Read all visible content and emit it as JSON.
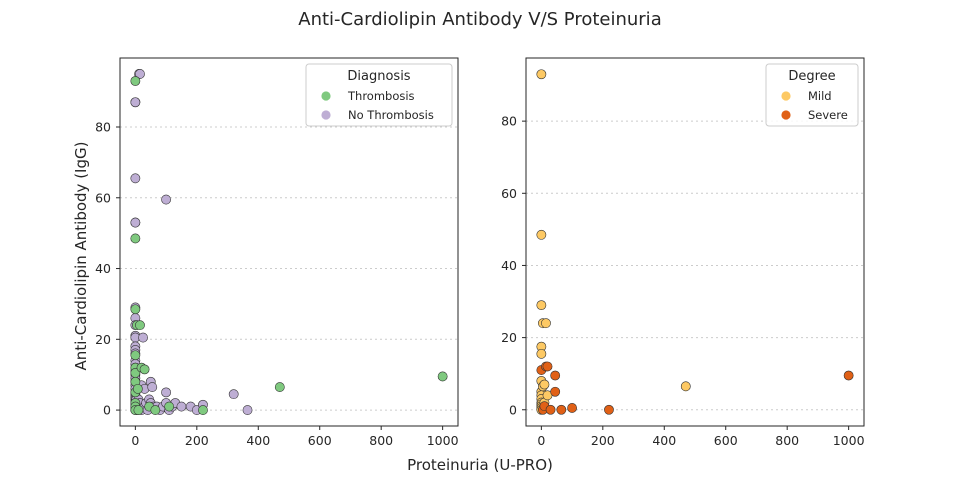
{
  "figure": {
    "title": "Anti-Cardiolipin Antibody V/S Proteinuria",
    "xlabel": "Proteinuria (U-PRO)",
    "ylabel": "Anti-Cardiolipin Antibody (IgG)"
  },
  "chart_data": [
    {
      "type": "scatter",
      "xlim": [
        -50,
        1050
      ],
      "ylim": [
        -4.5,
        99.5
      ],
      "xticks": [
        0,
        200,
        400,
        600,
        800,
        1000
      ],
      "yticks": [
        0,
        20,
        40,
        60,
        80
      ],
      "grid": "horizontal dotted",
      "legend": {
        "title": "Diagnosis",
        "placement": "top-right",
        "entries": [
          {
            "name": "Thrombosis",
            "color": "#7fc97f"
          },
          {
            "name": "No Thrombosis",
            "color": "#beaed4"
          }
        ]
      },
      "series": [
        {
          "name": "No Thrombosis",
          "color": "#beaed4",
          "points": [
            [
              0,
              87
            ],
            [
              0,
              87
            ],
            [
              0,
              65.5
            ],
            [
              0,
              53
            ],
            [
              0,
              53
            ],
            [
              0,
              29
            ],
            [
              0,
              26
            ],
            [
              0,
              24
            ],
            [
              0,
              21
            ],
            [
              0,
              20.5
            ],
            [
              0,
              18
            ],
            [
              0,
              17
            ],
            [
              0,
              16
            ],
            [
              0,
              14
            ],
            [
              0,
              13
            ],
            [
              0,
              12
            ],
            [
              0,
              11
            ],
            [
              0,
              10
            ],
            [
              0,
              9
            ],
            [
              0,
              8
            ],
            [
              0,
              7
            ],
            [
              0,
              6
            ],
            [
              0,
              5
            ],
            [
              0,
              4.5
            ],
            [
              0,
              4
            ],
            [
              0,
              3.5
            ],
            [
              0,
              3
            ],
            [
              0,
              2.5
            ],
            [
              0,
              2
            ],
            [
              0,
              1.5
            ],
            [
              0,
              1
            ],
            [
              0,
              0.5
            ],
            [
              0,
              0
            ],
            [
              2,
              1
            ],
            [
              3,
              3
            ],
            [
              5,
              0
            ],
            [
              5,
              2
            ],
            [
              8,
              1
            ],
            [
              10,
              0
            ],
            [
              10,
              3
            ],
            [
              12,
              95
            ],
            [
              15,
              95
            ],
            [
              15,
              2
            ],
            [
              20,
              7
            ],
            [
              20,
              0
            ],
            [
              25,
              20.5
            ],
            [
              30,
              6
            ],
            [
              30,
              1
            ],
            [
              35,
              2
            ],
            [
              40,
              0
            ],
            [
              45,
              3
            ],
            [
              50,
              8
            ],
            [
              50,
              2
            ],
            [
              55,
              6.5
            ],
            [
              60,
              1
            ],
            [
              70,
              1
            ],
            [
              80,
              0
            ],
            [
              90,
              1
            ],
            [
              100,
              59.5
            ],
            [
              100,
              5
            ],
            [
              100,
              2
            ],
            [
              110,
              0
            ],
            [
              120,
              1
            ],
            [
              130,
              2
            ],
            [
              150,
              1
            ],
            [
              180,
              1
            ],
            [
              200,
              0
            ],
            [
              220,
              1.5
            ],
            [
              320,
              4.5
            ],
            [
              365,
              0
            ]
          ]
        },
        {
          "name": "Thrombosis",
          "color": "#7fc97f",
          "points": [
            [
              0,
              93
            ],
            [
              0,
              48.5
            ],
            [
              0,
              28.5
            ],
            [
              0,
              15.5
            ],
            [
              0,
              12
            ],
            [
              0,
              10.5
            ],
            [
              0,
              8
            ],
            [
              0,
              5
            ],
            [
              0,
              2
            ],
            [
              0,
              1
            ],
            [
              0,
              0
            ],
            [
              5,
              24
            ],
            [
              8,
              6
            ],
            [
              10,
              0
            ],
            [
              15,
              24
            ],
            [
              20,
              12
            ],
            [
              30,
              11.5
            ],
            [
              45,
              1
            ],
            [
              65,
              0
            ],
            [
              110,
              1
            ],
            [
              220,
              0
            ],
            [
              470,
              6.5
            ],
            [
              1000,
              9.5
            ]
          ]
        }
      ]
    },
    {
      "type": "scatter",
      "xlim": [
        -50,
        1050
      ],
      "ylim": [
        -4.5,
        97.5
      ],
      "xticks": [
        0,
        200,
        400,
        600,
        800,
        1000
      ],
      "yticks": [
        0,
        20,
        40,
        60,
        80
      ],
      "grid": "horizontal dotted",
      "legend": {
        "title": "Degree",
        "placement": "top-right",
        "entries": [
          {
            "name": "Mild",
            "color": "#fdc964"
          },
          {
            "name": "Severe",
            "color": "#e06016"
          }
        ]
      },
      "series": [
        {
          "name": "Mild",
          "color": "#fdc964",
          "points": [
            [
              0,
              93
            ],
            [
              0,
              48.5
            ],
            [
              0,
              29
            ],
            [
              0,
              17.5
            ],
            [
              0,
              15.5
            ],
            [
              0,
              8
            ],
            [
              0,
              5
            ],
            [
              0,
              4
            ],
            [
              0,
              3
            ],
            [
              0,
              2
            ],
            [
              0,
              1.5
            ],
            [
              0,
              1
            ],
            [
              0,
              0.5
            ],
            [
              0,
              0
            ],
            [
              5,
              24
            ],
            [
              5,
              6.5
            ],
            [
              10,
              7
            ],
            [
              10,
              2
            ],
            [
              15,
              24
            ],
            [
              20,
              4
            ],
            [
              470,
              6.5
            ]
          ]
        },
        {
          "name": "Severe",
          "color": "#e06016",
          "points": [
            [
              0,
              11
            ],
            [
              5,
              0
            ],
            [
              10,
              1
            ],
            [
              15,
              12
            ],
            [
              20,
              12
            ],
            [
              30,
              0
            ],
            [
              45,
              9.5
            ],
            [
              45,
              5
            ],
            [
              65,
              0
            ],
            [
              100,
              0.5
            ],
            [
              220,
              0
            ],
            [
              1000,
              9.5
            ]
          ]
        }
      ]
    }
  ]
}
